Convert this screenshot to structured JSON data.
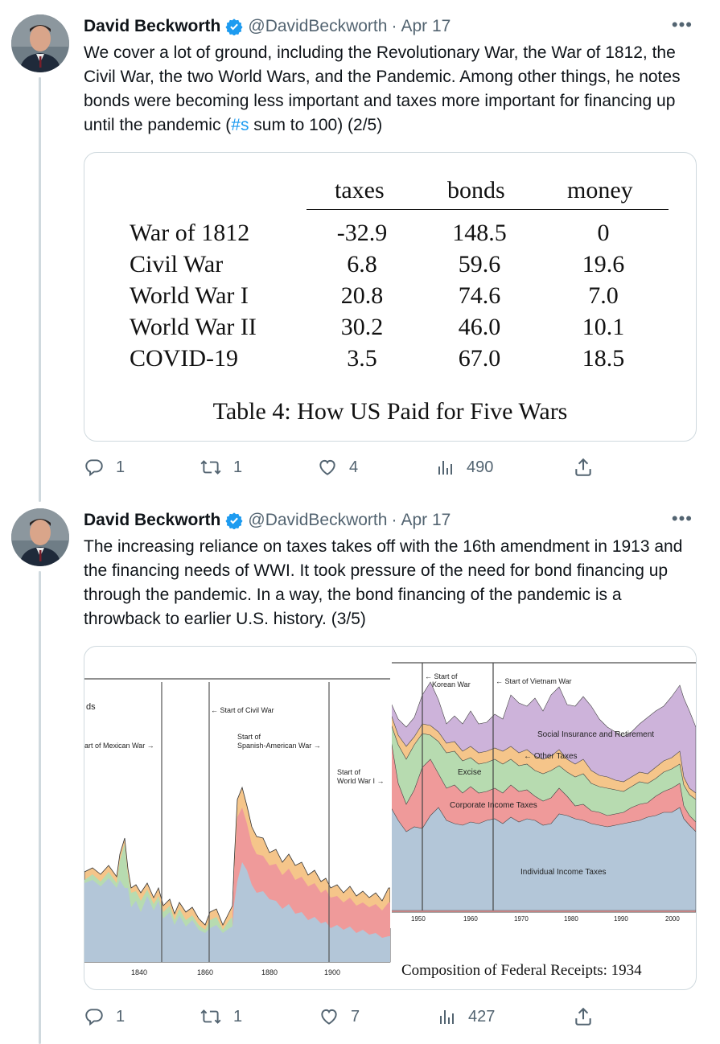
{
  "tweets": [
    {
      "author": "David Beckworth",
      "handle": "@DavidBeckworth",
      "dot": "·",
      "date": "Apr 17",
      "text_before_hashtag": "We cover a lot of ground, including the Revolutionary War, the War of 1812, the Civil War, the two World Wars, and the Pandemic. Among other things, he notes bonds were becoming less important and taxes more important for financing up until the pandemic (",
      "hashtag": "#s",
      "text_after_hashtag": " sum to 100) (2/5)",
      "table": {
        "columns": [
          "taxes",
          "bonds",
          "money"
        ],
        "rows": [
          {
            "label": "War of 1812",
            "taxes": "-32.9",
            "bonds": "148.5",
            "money": "0"
          },
          {
            "label": "Civil War",
            "taxes": "6.8",
            "bonds": "59.6",
            "money": "19.6"
          },
          {
            "label": "World War I",
            "taxes": "20.8",
            "bonds": "74.6",
            "money": "7.0"
          },
          {
            "label": "World War II",
            "taxes": "30.2",
            "bonds": "46.0",
            "money": "10.1"
          },
          {
            "label": "COVID-19",
            "taxes": "3.5",
            "bonds": "67.0",
            "money": "18.5"
          }
        ],
        "caption": "Table 4:  How US Paid for Five Wars"
      },
      "actions": {
        "replies": "1",
        "retweets": "1",
        "likes": "4",
        "views": "490"
      }
    },
    {
      "author": "David Beckworth",
      "handle": "@DavidBeckworth",
      "dot": "·",
      "date": "Apr 17",
      "text": "The increasing reliance on taxes takes off with the 16th amendment in 1913 and the financing needs of WWI. It took pressure of the need for bond financing up through the pandemic. In a way, the bond financing of the pandemic is a throwback to earlier U.S. history. (3/5)",
      "figure": {
        "left_panel": {
          "annotations": [
            "ds",
            "art of Mexican War →",
            "← Start of Civil War",
            "Start of",
            "Spanish-American War →",
            "Start of",
            "World War I →"
          ],
          "x_ticks": [
            "1840",
            "1860",
            "1880",
            "1900"
          ]
        },
        "right_panel": {
          "annotations": [
            "← Start of",
            "Korean War",
            "← Start of Vietnam War",
            "Social Insurance and Retirement",
            "← Other Taxes",
            "Excise",
            "Corporate Income Taxes",
            "Individual Income Taxes"
          ],
          "x_ticks": [
            "1950",
            "1960",
            "1970",
            "1980",
            "1990",
            "2000"
          ]
        },
        "caption": "Composition of Federal Receipts: 1934",
        "colors": {
          "individual": "#b3c6d8",
          "corporate": "#ef9a9a",
          "excise": "#b7dbb0",
          "other": "#f5c58a",
          "social": "#cdb3da"
        }
      },
      "actions": {
        "replies": "1",
        "retweets": "1",
        "likes": "7",
        "views": "427"
      }
    }
  ]
}
